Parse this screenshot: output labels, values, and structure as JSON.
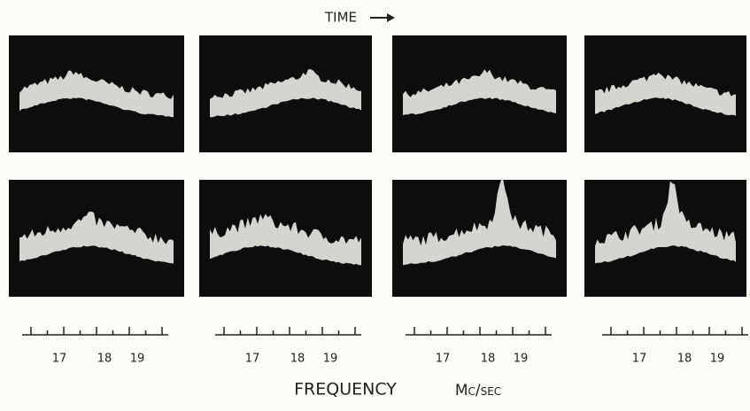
{
  "header": {
    "title": "TIME"
  },
  "scales": [
    {
      "labels": [
        "17",
        "18",
        "19"
      ]
    },
    {
      "labels": [
        "17",
        "18",
        "19"
      ]
    },
    {
      "labels": [
        "17",
        "18",
        "19"
      ]
    },
    {
      "labels": [
        "17",
        "18",
        "19"
      ]
    }
  ],
  "footer": {
    "label": "FREQUENCY",
    "unit": "Mc/sec"
  }
}
